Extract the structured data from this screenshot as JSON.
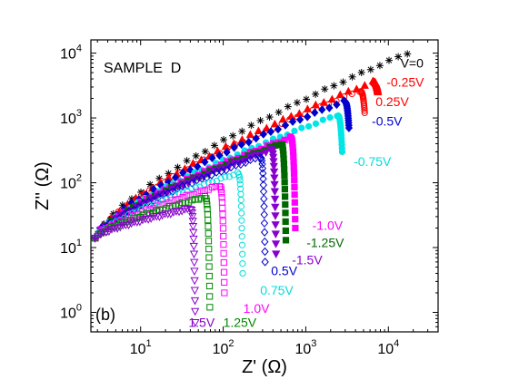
{
  "chart_data": {
    "type": "scatter",
    "scale": "log-log",
    "annotation": "SAMPLE  D",
    "panel_label": "(b)",
    "xlabel": "Z' (Ω)",
    "ylabel": "Z'' (Ω)",
    "xlim": [
      2.5,
      40000
    ],
    "ylim": [
      0.5,
      16000
    ],
    "x_ticks": [
      {
        "base": "10",
        "exp": "1",
        "value": 10
      },
      {
        "base": "10",
        "exp": "2",
        "value": 100
      },
      {
        "base": "10",
        "exp": "3",
        "value": 1000
      },
      {
        "base": "10",
        "exp": "4",
        "value": 10000
      }
    ],
    "y_ticks": [
      {
        "base": "10",
        "exp": "0",
        "value": 1
      },
      {
        "base": "10",
        "exp": "1",
        "value": 10
      },
      {
        "base": "10",
        "exp": "2",
        "value": 100
      },
      {
        "base": "10",
        "exp": "3",
        "value": 1000
      },
      {
        "base": "10",
        "exp": "4",
        "value": 10000
      }
    ],
    "series": [
      {
        "name": "V=0",
        "color": "#000000",
        "marker": "star",
        "peak_x": 17000,
        "peak_y": 10000,
        "y_end": 10000
      },
      {
        "name": "-0.25V",
        "color": "#ff0000",
        "marker": "triangle-up-filled",
        "peak_x": 6500,
        "peak_y": 3600,
        "y_end": 2500
      },
      {
        "name": "0.25V",
        "color": "#ff0000",
        "marker": "circle-open",
        "peak_x": 4500,
        "peak_y": 2600,
        "y_end": 1200
      },
      {
        "name": "-0.5V",
        "color": "#0000cc",
        "marker": "diamond-filled",
        "peak_x": 2900,
        "peak_y": 1800,
        "y_end": 700
      },
      {
        "name": "-0.75V",
        "color": "#00e5e5",
        "marker": "circle-filled",
        "peak_x": 2400,
        "peak_y": 1100,
        "y_end": 300
      },
      {
        "name": "-1.0V",
        "color": "#ff00ff",
        "marker": "square-filled",
        "peak_x": 650,
        "peak_y": 500,
        "y_end": 20
      },
      {
        "name": "-1.25V",
        "color": "#006600",
        "marker": "square-filled",
        "peak_x": 500,
        "peak_y": 400,
        "y_end": 13
      },
      {
        "name": "-1.5V",
        "color": "#8800cc",
        "marker": "triangle-down-filled",
        "peak_x": 380,
        "peak_y": 320,
        "y_end": 8
      },
      {
        "name": "0.5V",
        "color": "#0000cc",
        "marker": "diamond-open",
        "peak_x": 280,
        "peak_y": 250,
        "y_end": 6
      },
      {
        "name": "0.75V",
        "color": "#00dddd",
        "marker": "circle-open",
        "peak_x": 150,
        "peak_y": 140,
        "y_end": 4
      },
      {
        "name": "1.0V",
        "color": "#ff00ff",
        "marker": "square-open",
        "peak_x": 90,
        "peak_y": 90,
        "y_end": 2
      },
      {
        "name": "1.25V",
        "color": "#008800",
        "marker": "square-open",
        "peak_x": 60,
        "peak_y": 60,
        "y_end": 1.2
      },
      {
        "name": "1.5V",
        "color": "#8800cc",
        "marker": "triangle-down-open",
        "peak_x": 40,
        "peak_y": 40,
        "y_end": 0.7
      }
    ],
    "point_labels": [
      {
        "text": "V=0",
        "color": "#000000",
        "x": 14000,
        "y": 7000
      },
      {
        "text": "-0.25V",
        "color": "#ff0000",
        "x": 9500,
        "y": 3600
      },
      {
        "text": "0.25V",
        "color": "#ff0000",
        "x": 7000,
        "y": 1800
      },
      {
        "text": "-0.5V",
        "color": "#0000cc",
        "x": 6300,
        "y": 900
      },
      {
        "text": "-0.75V",
        "color": "#00dddd",
        "x": 3800,
        "y": 215
      },
      {
        "text": "-1.0V",
        "color": "#ff00ff",
        "x": 1200,
        "y": 22
      },
      {
        "text": "-1.25V",
        "color": "#006600",
        "x": 1020,
        "y": 12
      },
      {
        "text": "-1.5V",
        "color": "#8800cc",
        "x": 680,
        "y": 6.5
      },
      {
        "text": "0.5V",
        "color": "#0000cc",
        "x": 380,
        "y": 4.4
      },
      {
        "text": "0.75V",
        "color": "#00dddd",
        "x": 280,
        "y": 2.2
      },
      {
        "text": "1.0V",
        "color": "#ff00ff",
        "x": 175,
        "y": 1.15
      },
      {
        "text": "1.25V",
        "color": "#008800",
        "x": 100,
        "y": 0.7
      },
      {
        "text": "1.5V",
        "color": "#8800cc",
        "x": 38,
        "y": 0.7
      }
    ]
  }
}
